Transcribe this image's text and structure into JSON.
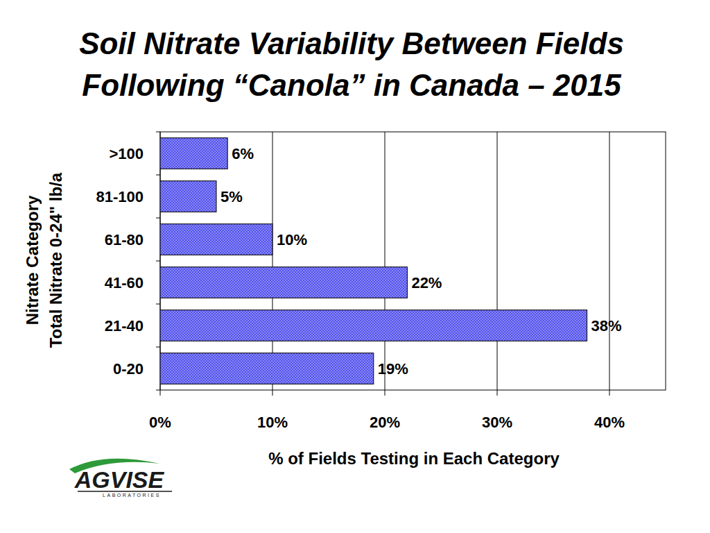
{
  "chart_data": {
    "type": "bar",
    "orientation": "horizontal",
    "title": "Soil Nitrate Variability Between Fields Following “Canola” in Canada – 2015",
    "y_label": [
      "Nitrate Category",
      "Total Nitrate 0-24\" lb/a"
    ],
    "x_label": "% of Fields Testing in Each Category",
    "categories": [
      "0-20",
      "21-40",
      "41-60",
      "61-80",
      "81-100",
      ">100"
    ],
    "values": [
      19,
      38,
      22,
      10,
      5,
      6
    ],
    "value_labels": [
      "19%",
      "38%",
      "22%",
      "10%",
      "5%",
      "6%"
    ],
    "color": "#5252ee",
    "xlim": [
      0,
      45
    ],
    "xticks": [
      {
        "value": 0,
        "label": "0%"
      },
      {
        "value": 10,
        "label": "10%"
      },
      {
        "value": 20,
        "label": "20%"
      },
      {
        "value": 30,
        "label": "30%"
      },
      {
        "value": 40,
        "label": "40%"
      }
    ],
    "grid": true,
    "data_labels": true,
    "logo": {
      "text": "AGVISE",
      "subtext": "LABORATORIES"
    }
  }
}
